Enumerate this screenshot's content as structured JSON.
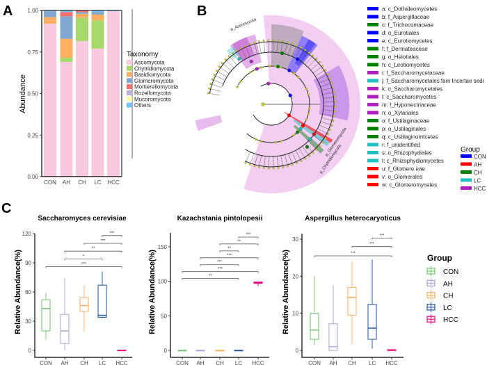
{
  "panels": {
    "a": "A",
    "b": "B",
    "c": "C"
  },
  "groups": [
    "CON",
    "AH",
    "CH",
    "LC",
    "HCC"
  ],
  "group_colors": {
    "CON": "#7cc67a",
    "AH": "#b3a9d3",
    "CH": "#f8b36b",
    "LC": "#2f5fa3",
    "HCC": "#e7147a"
  },
  "chart_data": [
    {
      "id": "A",
      "type": "bar",
      "stacked": true,
      "ylabel": "Abundance",
      "xlabel": "",
      "ylim": [
        0,
        1
      ],
      "yticks": [
        "0.00",
        "0.25",
        "0.50",
        "0.75",
        "1.00"
      ],
      "categories": [
        "CON",
        "AH",
        "CH",
        "LC",
        "HCC"
      ],
      "legend_title": "Taxonomy",
      "legend_position": "right",
      "series": [
        {
          "name": "Ascomycota",
          "color": "#f9c9e0",
          "values": [
            0.92,
            0.69,
            0.815,
            0.77,
            0.995
          ]
        },
        {
          "name": "Chytridiomycota",
          "color": "#a6d96a",
          "values": [
            0.0,
            0.025,
            0.14,
            0.17,
            0.0
          ]
        },
        {
          "name": "Basidiomycota",
          "color": "#fdae61",
          "values": [
            0.04,
            0.115,
            0.025,
            0.035,
            0.0
          ]
        },
        {
          "name": "Glomeromycota",
          "color": "#7fa7cf",
          "values": [
            0.035,
            0.135,
            0.01,
            0.015,
            0.0
          ]
        },
        {
          "name": "Mortierellomycota",
          "color": "#f46d6d",
          "values": [
            0.0,
            0.025,
            0.008,
            0.0,
            0.0
          ]
        },
        {
          "name": "Rozellomycota",
          "color": "#bcb0d8",
          "values": [
            0.0,
            0.0,
            0.0,
            0.0,
            0.0
          ]
        },
        {
          "name": "Mucoromycota",
          "color": "#ffffb3",
          "values": [
            0.0,
            0.0,
            0.0,
            0.0,
            0.0
          ]
        },
        {
          "name": "Others",
          "color": "#74c0ef",
          "values": [
            0.005,
            0.01,
            0.002,
            0.01,
            0.005
          ]
        }
      ]
    },
    {
      "id": "C1",
      "type": "box",
      "title": "Saccharomyces cerevisiae",
      "ylabel": "Relative Abundance(%)",
      "ylim": [
        0,
        120
      ],
      "yticks": [
        0,
        30,
        60,
        90,
        120
      ],
      "categories": [
        "CON",
        "AH",
        "CH",
        "LC",
        "HCC"
      ],
      "boxes": [
        {
          "min": 11,
          "q1": 20,
          "median": 43,
          "q3": 52,
          "max": 59
        },
        {
          "min": 0,
          "q1": 7,
          "median": 20,
          "q3": 37,
          "max": 74
        },
        {
          "min": 19,
          "q1": 40,
          "median": 46,
          "q3": 54,
          "max": 67
        },
        {
          "min": 33,
          "q1": 34,
          "median": 36,
          "q3": 67,
          "max": 81
        },
        {
          "min": 0,
          "q1": 0,
          "median": 0,
          "q3": 0.3,
          "max": 0.5
        }
      ],
      "significance": [
        {
          "from": "LC",
          "to": "HCC",
          "y": 118,
          "label": "***"
        },
        {
          "from": "CH",
          "to": "HCC",
          "y": 110,
          "label": "***"
        },
        {
          "from": "AH",
          "to": "HCC",
          "y": 102,
          "label": "**"
        },
        {
          "from": "AH",
          "to": "LC",
          "y": 94,
          "label": "*"
        },
        {
          "from": "CON",
          "to": "HCC",
          "y": 86,
          "label": "***"
        }
      ]
    },
    {
      "id": "C2",
      "type": "box",
      "title": "Kazachstania pintolopesii",
      "ylabel": "Relative Abundance(%)",
      "ylim": [
        0,
        170
      ],
      "yticks": [
        0,
        50,
        100,
        150
      ],
      "categories": [
        "CON",
        "AH",
        "CH",
        "LC",
        "HCC"
      ],
      "boxes": [
        {
          "min": 0,
          "q1": 0,
          "median": 0,
          "q3": 0.2,
          "max": 0.5
        },
        {
          "min": 0,
          "q1": 0,
          "median": 0,
          "q3": 0.2,
          "max": 0.5
        },
        {
          "min": 0,
          "q1": 0,
          "median": 0,
          "q3": 0.2,
          "max": 0.5
        },
        {
          "min": 0,
          "q1": 0,
          "median": 0,
          "q3": 0.3,
          "max": 0.8
        },
        {
          "min": 93,
          "q1": 97,
          "median": 98,
          "q3": 99,
          "max": 99.5
        }
      ],
      "significance": [
        {
          "from": "LC",
          "to": "HCC",
          "y": 164,
          "label": "***"
        },
        {
          "from": "CH",
          "to": "HCC",
          "y": 154,
          "label": "**"
        },
        {
          "from": "CH",
          "to": "LC",
          "y": 144,
          "label": "**"
        },
        {
          "from": "AH",
          "to": "HCC",
          "y": 134,
          "label": "***"
        },
        {
          "from": "AH",
          "to": "LC",
          "y": 124,
          "label": "***"
        },
        {
          "from": "CON",
          "to": "HCC",
          "y": 114,
          "label": "***"
        },
        {
          "from": "CON",
          "to": "LC",
          "y": 104,
          "label": "**"
        }
      ]
    },
    {
      "id": "C3",
      "type": "box",
      "title": "Aspergillus heterocaryoticus",
      "ylabel": "Relative Abundance(%)",
      "ylim": [
        0,
        31.5
      ],
      "yticks": [
        0,
        10,
        20,
        30
      ],
      "categories": [
        "CON",
        "AH",
        "CH",
        "LC",
        "HCC"
      ],
      "boxes": [
        {
          "min": 1.5,
          "q1": 3,
          "median": 5.5,
          "q3": 10,
          "max": 20
        },
        {
          "min": 0,
          "q1": 0,
          "median": 1,
          "q3": 7.2,
          "max": 17.5
        },
        {
          "min": 1.8,
          "q1": 9.5,
          "median": 14.3,
          "q3": 17,
          "max": 24
        },
        {
          "min": 0.5,
          "q1": 3,
          "median": 6,
          "q3": 12.4,
          "max": 24.5
        },
        {
          "min": 0,
          "q1": 0,
          "median": 0,
          "q3": 0.2,
          "max": 0.4
        }
      ],
      "significance": [
        {
          "from": "LC",
          "to": "HCC",
          "y": 30.3,
          "label": "***"
        },
        {
          "from": "CH",
          "to": "HCC",
          "y": 28,
          "label": "***"
        },
        {
          "from": "CON",
          "to": "HCC",
          "y": 25.5,
          "label": "***"
        }
      ]
    }
  ],
  "cladogram": {
    "clade_labels": [
      "p_Ascomycota",
      "p_Glomeromycota",
      "p_Chytridiomycota"
    ],
    "legend": [
      {
        "label": "a: c_Dothideomycetes",
        "group": "CON"
      },
      {
        "label": "b: f_Aspergillaceae",
        "group": "CON"
      },
      {
        "label": "c: f_Trichocomaceae",
        "group": "CH"
      },
      {
        "label": "d: o_Eurotiales",
        "group": "CON"
      },
      {
        "label": "e: c_Eurotiomycetes",
        "group": "CON"
      },
      {
        "label": "f: f_Dermateaceae",
        "group": "CH"
      },
      {
        "label": "g: o_Helotiales",
        "group": "CH"
      },
      {
        "label": "h: c_Leotiomycetes",
        "group": "CH"
      },
      {
        "label": "i: f_Saccharomycetaceae",
        "group": "HCC"
      },
      {
        "label": "j: f_Saccharomycetales fam Incertae sedi",
        "group": "LC"
      },
      {
        "label": "k: o_Saccharomycetales",
        "group": "HCC"
      },
      {
        "label": "l: c_Saccharomycetes",
        "group": "HCC"
      },
      {
        "label": "m: f_Hyponectriaceae",
        "group": "HCC"
      },
      {
        "label": "n: o_Xylariales",
        "group": "HCC"
      },
      {
        "label": "o: f_Ustilaginaceae",
        "group": "CH"
      },
      {
        "label": "p: o_Ustilaginales",
        "group": "CH"
      },
      {
        "label": "q: c_Ustilaginomtcetes",
        "group": "CH"
      },
      {
        "label": "r: f_unidentified",
        "group": "LC"
      },
      {
        "label": "s: o_Rhizophydiales",
        "group": "LC"
      },
      {
        "label": "t: c_Rhizophydiomycetes",
        "group": "LC"
      },
      {
        "label": "u: f_Glomere eae",
        "group": "AH"
      },
      {
        "label": "v: o_Glomerales",
        "group": "AH"
      },
      {
        "label": "w: c_Glomeromycetes",
        "group": "AH"
      }
    ],
    "group_legend_title": "Group",
    "group_colors": {
      "CON": "#0000ff",
      "AH": "#ff0000",
      "CH": "#008000",
      "LC": "#20c0c0",
      "HCC": "#b020c0"
    }
  },
  "group_legend_title": "Group"
}
